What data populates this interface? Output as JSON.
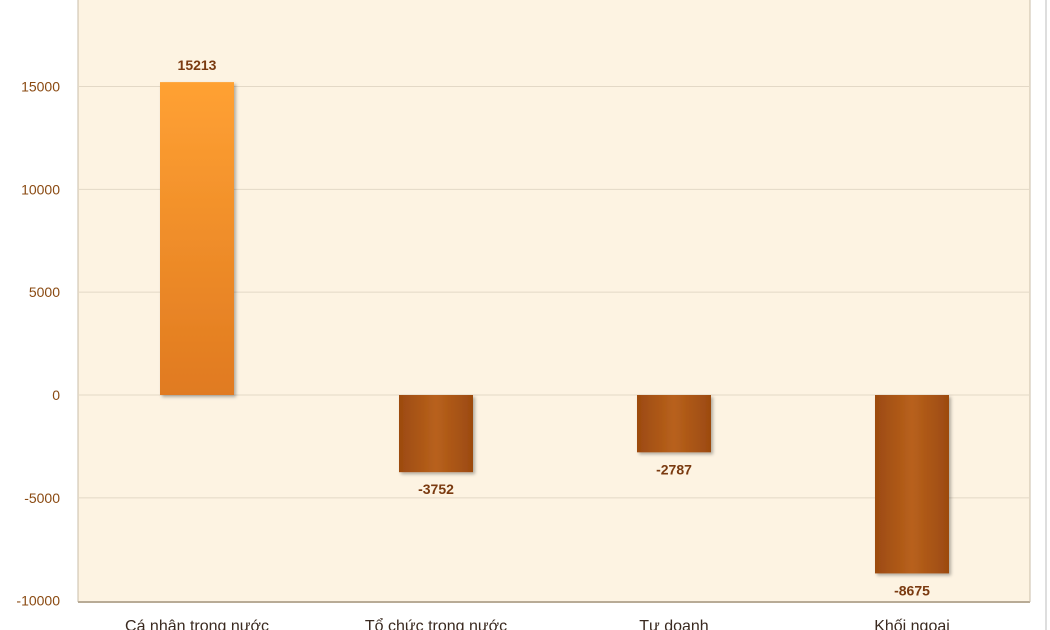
{
  "chart_data": {
    "type": "bar",
    "categories": [
      "Cá nhân trong nước",
      "Tổ chức trong nước",
      "Tự doanh",
      "Khối ngoại"
    ],
    "series": [
      {
        "values": [
          15213,
          -3752,
          -2787,
          -8675
        ]
      }
    ],
    "data_labels": [
      "15213",
      "-3752",
      "-2787",
      "-8675"
    ],
    "yticks": [
      "15000",
      "10000",
      "5000",
      "0",
      "-5000",
      "-10000"
    ],
    "ytick_values": [
      15000,
      10000,
      5000,
      0,
      -5000,
      -10000
    ],
    "ylim": [
      -10000,
      19500
    ],
    "grid": true,
    "colors": {
      "plot_background": "#fdf3e2",
      "gridline": "#e3d8c6",
      "positive_bar_top": "#ffa133",
      "positive_bar_bottom": "#e07a20",
      "negative_bar": "#9c4a10",
      "negative_bar_light": "#b8611c"
    }
  }
}
